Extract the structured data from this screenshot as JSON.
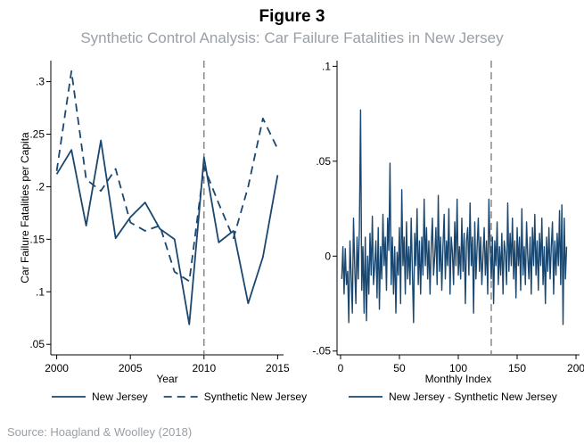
{
  "figure": {
    "title": "Figure 3",
    "subtitle": "Synthetic Control Analysis: Car Failure Fatalities in New Jersey",
    "source": "Source: Hoagland & Woolley (2018)"
  },
  "colors": {
    "series": "#1a476f",
    "reference_line": "#777777",
    "axis": "#000000"
  },
  "chart_data": [
    {
      "type": "line",
      "xlabel": "Year",
      "ylabel": "Car Failure Fatalities per Capita",
      "xlim": [
        1999.6,
        2015.4
      ],
      "ylim": [
        0.04,
        0.32
      ],
      "xticks": [
        2000,
        2005,
        2010,
        2015
      ],
      "xtick_labels": [
        "2000",
        "2005",
        "2010",
        "2015"
      ],
      "yticks": [
        0.05,
        0.1,
        0.15,
        0.2,
        0.25,
        0.3
      ],
      "ytick_labels": [
        ".05",
        ".1",
        ".15",
        ".2",
        ".25",
        ".3"
      ],
      "reference_x": 2010,
      "grid": false,
      "legend_position": "bottom",
      "x": [
        2000,
        2001,
        2002,
        2003,
        2004,
        2005,
        2006,
        2007,
        2008,
        2009,
        2010,
        2011,
        2012,
        2013,
        2014,
        2015
      ],
      "series": [
        {
          "name": "New Jersey",
          "style": "solid",
          "values": [
            0.212,
            0.235,
            0.163,
            0.244,
            0.151,
            0.171,
            0.185,
            0.16,
            0.15,
            0.069,
            0.228,
            0.147,
            0.158,
            0.089,
            0.133,
            0.211
          ]
        },
        {
          "name": "Synthetic New Jersey",
          "style": "dashed",
          "values": [
            0.215,
            0.31,
            0.207,
            0.196,
            0.217,
            0.166,
            0.158,
            0.163,
            0.119,
            0.11,
            0.219,
            0.184,
            0.151,
            0.2,
            0.265,
            0.236
          ]
        }
      ]
    },
    {
      "type": "line",
      "xlabel": "Monthly Index",
      "ylabel": "",
      "xlim": [
        -3,
        203
      ],
      "ylim": [
        -0.052,
        0.103
      ],
      "xticks": [
        0,
        50,
        100,
        150,
        200
      ],
      "xtick_labels": [
        "0",
        "50",
        "100",
        "150",
        "200"
      ],
      "yticks": [
        -0.05,
        0,
        0.05,
        0.1
      ],
      "ytick_labels": [
        "-.05",
        "0",
        ".05",
        ".1"
      ],
      "reference_x": 128,
      "grid": false,
      "legend_position": "bottom",
      "series": [
        {
          "name": "New Jersey - Synthetic New Jersey",
          "style": "solid",
          "x": [
            1,
            2,
            3,
            4,
            5,
            6,
            7,
            8,
            9,
            10,
            11,
            12,
            13,
            14,
            15,
            16,
            17,
            18,
            19,
            20,
            21,
            22,
            23,
            24,
            25,
            26,
            27,
            28,
            29,
            30,
            31,
            32,
            33,
            34,
            35,
            36,
            37,
            38,
            39,
            40,
            41,
            42,
            43,
            44,
            45,
            46,
            47,
            48,
            49,
            50,
            51,
            52,
            53,
            54,
            55,
            56,
            57,
            58,
            59,
            60,
            61,
            62,
            63,
            64,
            65,
            66,
            67,
            68,
            69,
            70,
            71,
            72,
            73,
            74,
            75,
            76,
            77,
            78,
            79,
            80,
            81,
            82,
            83,
            84,
            85,
            86,
            87,
            88,
            89,
            90,
            91,
            92,
            93,
            94,
            95,
            96,
            97,
            98,
            99,
            100,
            101,
            102,
            103,
            104,
            105,
            106,
            107,
            108,
            109,
            110,
            111,
            112,
            113,
            114,
            115,
            116,
            117,
            118,
            119,
            120,
            121,
            122,
            123,
            124,
            125,
            126,
            127,
            128,
            129,
            130,
            131,
            132,
            133,
            134,
            135,
            136,
            137,
            138,
            139,
            140,
            141,
            142,
            143,
            144,
            145,
            146,
            147,
            148,
            149,
            150,
            151,
            152,
            153,
            154,
            155,
            156,
            157,
            158,
            159,
            160,
            161,
            162,
            163,
            164,
            165,
            166,
            167,
            168,
            169,
            170,
            171,
            172,
            173,
            174,
            175,
            176,
            177,
            178,
            179,
            180,
            181,
            182,
            183,
            184,
            185,
            186,
            187,
            188,
            189,
            190,
            191,
            192
          ],
          "values": [
            -0.012,
            0.005,
            -0.02,
            0.004,
            -0.015,
            -0.008,
            -0.035,
            0.008,
            -0.01,
            -0.03,
            0.02,
            -0.005,
            -0.025,
            0.01,
            -0.012,
            0.015,
            0.077,
            -0.018,
            0.005,
            -0.03,
            0.01,
            -0.034,
            0.0,
            -0.02,
            0.012,
            -0.01,
            0.021,
            -0.015,
            -0.005,
            0.008,
            -0.022,
            0.015,
            -0.028,
            0.005,
            -0.012,
            0.022,
            -0.005,
            0.01,
            -0.018,
            0.02,
            0.003,
            0.049,
            -0.015,
            0.01,
            -0.02,
            0.005,
            -0.03,
            0.002,
            -0.01,
            0.015,
            -0.025,
            0.035,
            -0.005,
            0.01,
            -0.02,
            0.018,
            -0.012,
            0.005,
            -0.015,
            0.02,
            -0.008,
            -0.035,
            0.012,
            -0.005,
            0.025,
            -0.015,
            0.008,
            -0.02,
            0.01,
            -0.01,
            0.03,
            -0.005,
            0.015,
            -0.012,
            0.008,
            -0.02,
            0.005,
            0.02,
            -0.01,
            0.0,
            0.015,
            -0.015,
            0.032,
            -0.008,
            0.01,
            -0.018,
            0.005,
            0.022,
            -0.012,
            0.008,
            -0.005,
            0.025,
            -0.02,
            0.01,
            0.002,
            -0.015,
            0.018,
            -0.005,
            0.03,
            -0.01,
            0.005,
            -0.012,
            0.02,
            -0.008,
            0.012,
            -0.025,
            0.008,
            0.015,
            -0.01,
            0.028,
            -0.005,
            0.01,
            -0.03,
            0.018,
            -0.012,
            0.005,
            0.02,
            -0.008,
            0.01,
            -0.015,
            0.0,
            0.015,
            -0.01,
            0.008,
            -0.02,
            0.03,
            0.005,
            -0.012,
            0.01,
            -0.025,
            0.008,
            -0.005,
            0.018,
            -0.015,
            0.005,
            -0.01,
            0.012,
            -0.02,
            0.008,
            0.002,
            -0.015,
            0.028,
            -0.008,
            0.012,
            -0.005,
            0.02,
            -0.012,
            0.008,
            -0.022,
            0.015,
            -0.005,
            0.01,
            -0.018,
            0.025,
            -0.01,
            0.005,
            -0.015,
            0.018,
            0.0,
            -0.012,
            0.01,
            -0.02,
            0.015,
            -0.005,
            0.022,
            -0.01,
            0.008,
            -0.018,
            0.012,
            -0.005,
            0.02,
            -0.015,
            0.005,
            -0.025,
            0.01,
            -0.008,
            0.015,
            -0.012,
            0.005,
            0.018,
            -0.02,
            0.008,
            -0.01,
            0.012,
            -0.005,
            0.024,
            -0.015,
            0.027,
            -0.036,
            0.02,
            -0.012,
            0.005
          ]
        }
      ]
    }
  ]
}
